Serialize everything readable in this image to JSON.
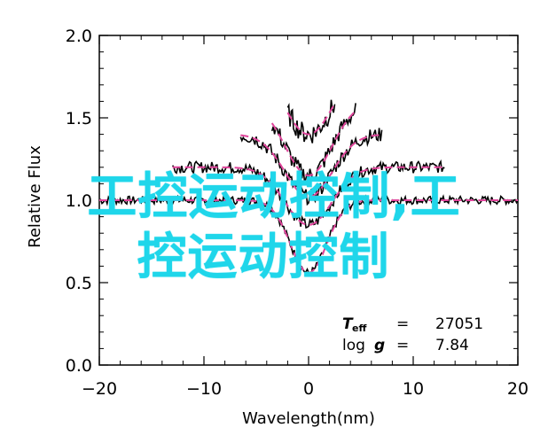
{
  "chart_data": {
    "type": "line",
    "title": "",
    "xlabel": "Wavelength(nm)",
    "ylabel": "Relative Flux",
    "xlim": [
      -20,
      20
    ],
    "ylim": [
      0.0,
      2.0
    ],
    "xticks": [
      "−20",
      "−10",
      "0",
      "10",
      "20"
    ],
    "yticks": [
      "0.0",
      "0.5",
      "1.0",
      "1.5",
      "2.0"
    ],
    "series": [
      {
        "offset": 0.0,
        "x_range": [
          -20,
          20
        ],
        "color": "#000000",
        "model_color": "#e0449b"
      },
      {
        "offset": 0.2,
        "x_range": [
          -13,
          13
        ],
        "color": "#000000",
        "model_color": "#e0449b"
      },
      {
        "offset": 0.4,
        "x_range": [
          -6.5,
          7
        ],
        "color": "#000000",
        "model_color": "#e0449b"
      },
      {
        "offset": 0.6,
        "x_range": [
          -3.5,
          4.5
        ],
        "color": "#000000",
        "model_color": "#e0449b"
      },
      {
        "offset": 0.8,
        "x_range": [
          -2,
          2.5
        ],
        "color": "#000000",
        "model_color": "#e0449b"
      }
    ],
    "annotations": {
      "teff_symbol": "T",
      "teff_sub": "eff",
      "teff_eq": "=",
      "teff_value": "27051",
      "logg_label": "log",
      "logg_symbol": "g",
      "logg_eq": "=",
      "logg_value": "7.84"
    }
  },
  "overlay": {
    "line1": "工控运动控制,工",
    "line2": "控运动控制"
  }
}
